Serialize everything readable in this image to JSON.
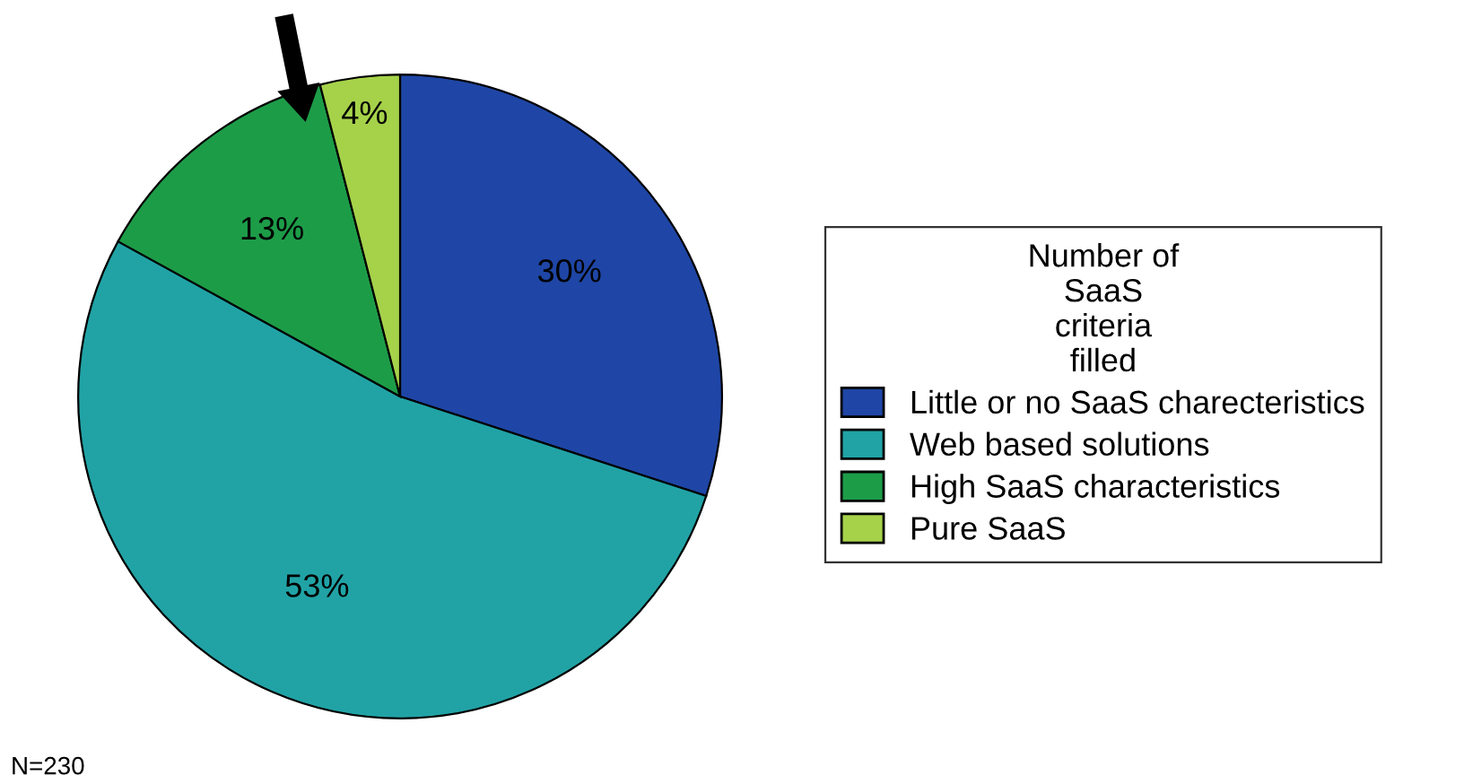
{
  "chart_data": {
    "type": "pie",
    "categories": [
      "Little or no SaaS charecteristics",
      "Web based solutions",
      "High SaaS characteristics",
      "Pure SaaS"
    ],
    "values": [
      30,
      53,
      13,
      4
    ],
    "colors": [
      "#1f46a6",
      "#21a3a6",
      "#1d9c48",
      "#a6d24a"
    ],
    "value_labels": [
      "30%",
      "53%",
      "13%",
      "4%"
    ],
    "legend": "right",
    "legend_title": "Number of\nSaaS\ncriteria\nfilled",
    "annotations": [
      "N=230"
    ]
  }
}
